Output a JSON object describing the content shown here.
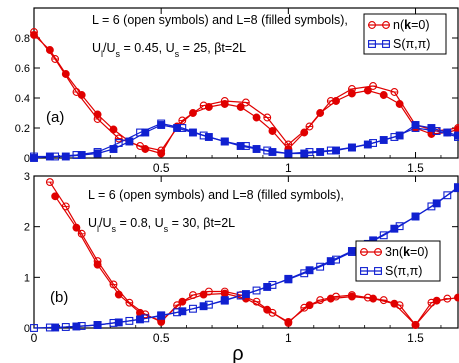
{
  "chart_data": [
    {
      "type": "line",
      "panel_label": "(a)",
      "annotation_lines": [
        "L = 6 (open symbols) and L=8 (filled symbols),",
        "U_l/U_s = 0.45, U_s = 25, βt=2L"
      ],
      "xlim": [
        0,
        1.667
      ],
      "ylim": [
        0,
        1.0
      ],
      "xticks": [
        0,
        0.5,
        1,
        1.5
      ],
      "xtick_labels": [
        "",
        "0.5",
        "1",
        "1.5"
      ],
      "yticks": [
        0,
        0.2,
        0.4,
        0.6,
        0.8
      ],
      "ytick_labels": [
        "0",
        "0.2",
        "0.4",
        "0.6",
        "0.8"
      ],
      "legend_position": "top-right",
      "series": [
        {
          "name": "n(k=0)",
          "color": "#e00000",
          "marker": "circle",
          "filled": false,
          "x": [
            0,
            0.083,
            0.167,
            0.25,
            0.333,
            0.417,
            0.5,
            0.583,
            0.667,
            0.75,
            0.833,
            0.917,
            1.0,
            1.083,
            1.167,
            1.25,
            1.333,
            1.417,
            1.5,
            1.583,
            1.667
          ],
          "y": [
            0.84,
            0.66,
            0.44,
            0.26,
            0.13,
            0.08,
            0.05,
            0.25,
            0.35,
            0.38,
            0.37,
            0.27,
            0.09,
            0.21,
            0.38,
            0.46,
            0.48,
            0.44,
            0.22,
            0.18,
            0.2
          ]
        },
        {
          "name": "",
          "color": "#e00000",
          "marker": "circle",
          "filled": true,
          "x": [
            0,
            0.0625,
            0.125,
            0.1875,
            0.25,
            0.3125,
            0.375,
            0.4375,
            0.5,
            0.5625,
            0.625,
            0.6875,
            0.75,
            0.8125,
            0.875,
            0.9375,
            1.0,
            1.0625,
            1.125,
            1.1875,
            1.25,
            1.3125,
            1.375,
            1.4375,
            1.5,
            1.5625,
            1.625,
            1.667
          ],
          "y": [
            0.82,
            0.72,
            0.56,
            0.42,
            0.29,
            0.19,
            0.11,
            0.06,
            0.03,
            0.21,
            0.3,
            0.34,
            0.36,
            0.34,
            0.27,
            0.18,
            0.06,
            0.17,
            0.3,
            0.38,
            0.43,
            0.45,
            0.42,
            0.36,
            0.2,
            0.16,
            0.17,
            0.19
          ]
        },
        {
          "name": "S(π,π)",
          "color": "#1020d0",
          "marker": "square",
          "filled": false,
          "x": [
            0,
            0.083,
            0.167,
            0.25,
            0.333,
            0.417,
            0.5,
            0.583,
            0.667,
            0.75,
            0.833,
            0.917,
            1.0,
            1.083,
            1.167,
            1.25,
            1.333,
            1.417,
            1.5,
            1.583,
            1.667
          ],
          "y": [
            0.01,
            0.01,
            0.02,
            0.04,
            0.1,
            0.17,
            0.23,
            0.2,
            0.15,
            0.11,
            0.08,
            0.05,
            0.03,
            0.04,
            0.05,
            0.07,
            0.1,
            0.14,
            0.2,
            0.18,
            0.14
          ]
        },
        {
          "name": "",
          "color": "#1020d0",
          "marker": "square",
          "filled": true,
          "x": [
            0,
            0.0625,
            0.125,
            0.1875,
            0.25,
            0.3125,
            0.375,
            0.4375,
            0.5,
            0.5625,
            0.625,
            0.6875,
            0.75,
            0.8125,
            0.875,
            0.9375,
            1.0,
            1.0625,
            1.125,
            1.1875,
            1.25,
            1.3125,
            1.375,
            1.4375,
            1.5,
            1.5625,
            1.625,
            1.667
          ],
          "y": [
            0.0,
            0.01,
            0.01,
            0.02,
            0.03,
            0.06,
            0.11,
            0.17,
            0.22,
            0.2,
            0.17,
            0.14,
            0.11,
            0.08,
            0.06,
            0.04,
            0.03,
            0.03,
            0.04,
            0.05,
            0.07,
            0.09,
            0.12,
            0.15,
            0.22,
            0.2,
            0.17,
            0.15
          ]
        }
      ]
    },
    {
      "type": "line",
      "panel_label": "(b)",
      "annotation_lines": [
        "L = 6 (open symbols) and L=8 (filled symbols),",
        "U_l/U_s = 0.8, U_s = 30, βt=2L"
      ],
      "xlabel": "ρ",
      "xlim": [
        0,
        1.667
      ],
      "ylim": [
        0,
        3.0
      ],
      "xticks": [
        0,
        0.5,
        1,
        1.5
      ],
      "xtick_labels": [
        "0",
        "0.5",
        "1",
        "1.5"
      ],
      "yticks": [
        0,
        1,
        2,
        3
      ],
      "ytick_labels": [
        "0",
        "1",
        "2",
        "3"
      ],
      "legend_position": "right",
      "series": [
        {
          "name": "3n(k=0)",
          "color": "#e00000",
          "marker": "circle",
          "filled": false,
          "x": [
            0.0625,
            0.125,
            0.1875,
            0.25,
            0.3125,
            0.375,
            0.4375,
            0.5,
            0.5625,
            0.625,
            0.6875,
            0.75,
            0.8125,
            0.875,
            0.9375,
            1.0,
            1.0625,
            1.125,
            1.1875,
            1.25,
            1.3125,
            1.375,
            1.4375,
            1.5,
            1.5625,
            1.625
          ],
          "y": [
            2.88,
            2.4,
            1.86,
            1.32,
            0.86,
            0.5,
            0.27,
            0.12,
            0.45,
            0.65,
            0.72,
            0.72,
            0.65,
            0.52,
            0.3,
            0.1,
            0.4,
            0.55,
            0.62,
            0.65,
            0.6,
            0.55,
            0.45,
            0.06,
            0.5,
            0.58
          ]
        },
        {
          "name": "",
          "color": "#e00000",
          "marker": "circle",
          "filled": true,
          "x": [
            0.0833,
            0.1667,
            0.25,
            0.3333,
            0.4167,
            0.5,
            0.5833,
            0.6667,
            0.75,
            0.8333,
            0.9167,
            1.0,
            1.0833,
            1.1667,
            1.25,
            1.3333,
            1.4167,
            1.5,
            1.5833,
            1.6667
          ],
          "y": [
            2.6,
            1.98,
            1.25,
            0.66,
            0.3,
            0.14,
            0.52,
            0.66,
            0.68,
            0.58,
            0.36,
            0.12,
            0.45,
            0.58,
            0.62,
            0.58,
            0.48,
            0.06,
            0.54,
            0.6
          ]
        },
        {
          "name": "S(π,π)",
          "color": "#1020d0",
          "marker": "square",
          "filled": false,
          "x": [
            0,
            0.0625,
            0.125,
            0.1875,
            0.25,
            0.3125,
            0.375,
            0.4375,
            0.5,
            0.5625,
            0.625,
            0.6875,
            0.75,
            0.8125,
            0.875,
            0.9375,
            1.0,
            1.0625,
            1.125,
            1.1875,
            1.25,
            1.3125,
            1.375,
            1.4375,
            1.5,
            1.5625,
            1.625,
            1.667
          ],
          "y": [
            0.0,
            0.01,
            0.02,
            0.04,
            0.06,
            0.1,
            0.14,
            0.19,
            0.25,
            0.31,
            0.38,
            0.46,
            0.55,
            0.64,
            0.74,
            0.85,
            0.96,
            1.08,
            1.21,
            1.35,
            1.5,
            1.66,
            1.83,
            2.01,
            2.2,
            2.4,
            2.62,
            2.76
          ]
        },
        {
          "name": "",
          "color": "#1020d0",
          "marker": "square",
          "filled": true,
          "x": [
            0.0833,
            0.1667,
            0.25,
            0.3333,
            0.4167,
            0.5,
            0.5833,
            0.6667,
            0.75,
            0.8333,
            0.9167,
            1.0,
            1.0833,
            1.1667,
            1.25,
            1.3333,
            1.4167,
            1.5,
            1.5833,
            1.6667
          ],
          "y": [
            0.01,
            0.03,
            0.06,
            0.11,
            0.17,
            0.24,
            0.33,
            0.43,
            0.54,
            0.67,
            0.81,
            0.97,
            1.14,
            1.32,
            1.52,
            1.73,
            1.96,
            2.2,
            2.46,
            2.78
          ]
        }
      ]
    }
  ]
}
